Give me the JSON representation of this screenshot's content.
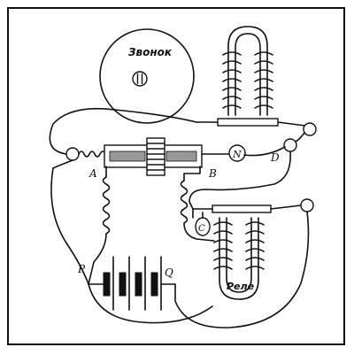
{
  "labels": {
    "bell": "Звонок",
    "relay": "Реле",
    "a": "A",
    "b": "B",
    "n": "N",
    "d": "D",
    "c": "C",
    "p": "P",
    "q": "Q"
  },
  "colors": {
    "ink": "#111111",
    "paper": "#ffffff"
  }
}
